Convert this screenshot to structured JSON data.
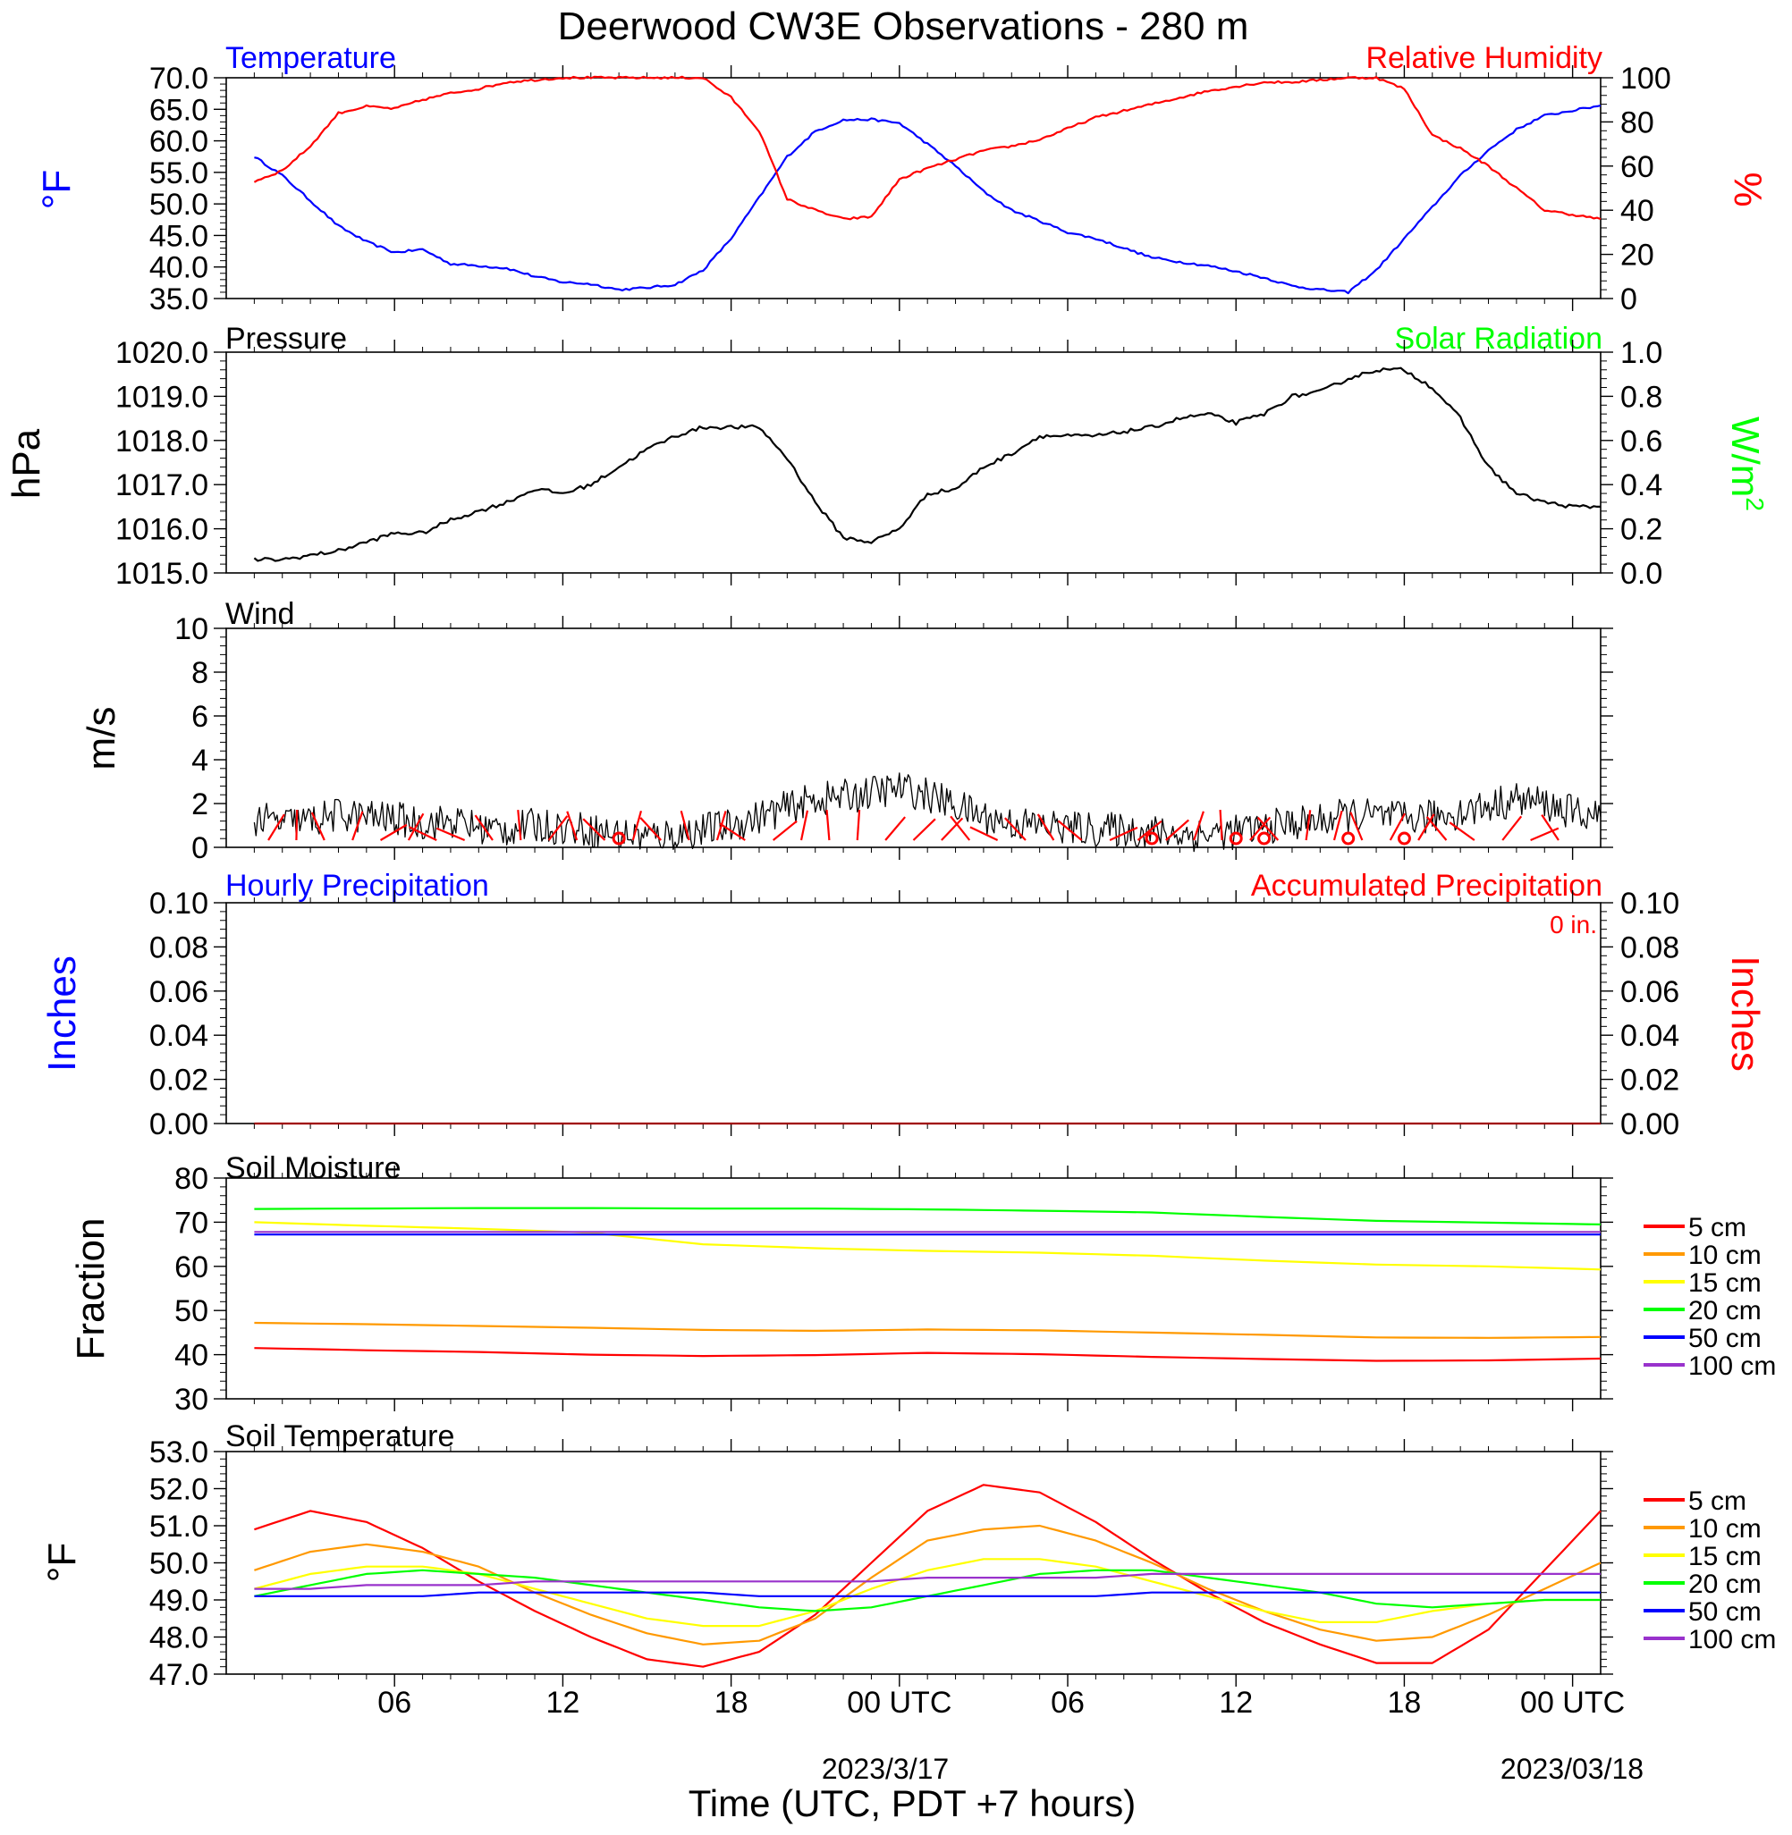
{
  "title": "Deerwood CW3E Observations - 280 m",
  "x_axis": {
    "label": "Time (UTC, PDT +7 hours)",
    "ticks": [
      "06",
      "12",
      "18",
      "00 UTC",
      "06",
      "12",
      "18",
      "00 UTC"
    ],
    "dates": [
      "2023/3/17",
      "2023/03/18"
    ]
  },
  "chart_data": [
    {
      "id": "temp_rh",
      "type": "line",
      "left_title": "Temperature",
      "right_title": "Relative Humidity",
      "ylabel_left": "°F",
      "ylabel_right": "%",
      "ylim_left": [
        35,
        70
      ],
      "ylim_right": [
        0,
        100
      ],
      "left_ticks": [
        "70.0",
        "65.0",
        "60.0",
        "55.0",
        "50.0",
        "45.0",
        "40.0",
        "35.0"
      ],
      "right_ticks": [
        "100",
        "80",
        "60",
        "40",
        "20",
        "0"
      ],
      "x_hours": [
        1,
        2,
        3,
        4,
        5,
        6,
        7,
        8,
        9,
        10,
        11,
        12,
        13,
        14,
        15,
        16,
        17,
        18,
        19,
        20,
        21,
        22,
        23,
        24,
        25,
        26,
        27,
        28,
        29,
        30,
        31,
        32,
        33,
        34,
        35,
        36,
        37,
        38,
        39,
        40,
        41,
        42,
        43,
        44,
        45,
        46,
        47,
        48,
        49
      ],
      "series": [
        {
          "name": "Temperature",
          "axis": "left",
          "color": "#0000ff",
          "values": [
            57.5,
            54.5,
            50.5,
            46.5,
            44.0,
            42.3,
            42.8,
            40.5,
            40.2,
            39.8,
            38.5,
            37.6,
            37.3,
            36.4,
            36.7,
            37.2,
            39.5,
            44.5,
            51.0,
            57.5,
            61.5,
            63.3,
            63.4,
            62.8,
            59.5,
            56.0,
            52.0,
            49.0,
            47.3,
            45.5,
            44.5,
            43.0,
            41.5,
            40.8,
            40.2,
            39.3,
            38.3,
            37.0,
            36.4,
            36.0,
            39.5,
            44.5,
            49.5,
            54.5,
            58.5,
            61.8,
            64.0,
            64.8,
            65.6
          ]
        },
        {
          "name": "Relative Humidity",
          "axis": "right",
          "color": "#ff0000",
          "values": [
            53,
            58,
            69,
            84,
            87,
            86,
            90,
            93,
            95,
            98,
            99,
            100,
            100,
            100,
            100,
            100,
            100,
            91,
            76,
            45,
            40,
            36,
            37,
            54,
            59,
            63,
            67,
            69,
            72,
            77,
            82,
            85,
            88,
            91,
            94,
            96,
            98,
            98,
            99,
            100,
            100,
            95,
            74,
            68,
            60,
            50,
            40,
            38,
            36
          ]
        }
      ]
    },
    {
      "id": "pressure",
      "type": "line",
      "left_title": "Pressure",
      "right_title": "Solar Radiation",
      "ylabel_left": "hPa",
      "ylabel_right": "W/m2",
      "ylim_left": [
        1015,
        1020
      ],
      "ylim_right": [
        0,
        1
      ],
      "left_ticks": [
        "1020.0",
        "1019.0",
        "1018.0",
        "1017.0",
        "1016.0",
        "1015.0"
      ],
      "right_ticks": [
        "1.0",
        "0.8",
        "0.6",
        "0.4",
        "0.2",
        "0.0"
      ],
      "x_hours": [
        1,
        2,
        3,
        4,
        5,
        6,
        7,
        8,
        9,
        10,
        11,
        12,
        13,
        14,
        15,
        16,
        17,
        18,
        19,
        20,
        21,
        22,
        23,
        24,
        25,
        26,
        27,
        28,
        29,
        30,
        31,
        32,
        33,
        34,
        35,
        36,
        37,
        38,
        39,
        40,
        41,
        42,
        43,
        44,
        45,
        46,
        47,
        48,
        49
      ],
      "series": [
        {
          "name": "Pressure",
          "axis": "left",
          "color": "#000000",
          "values": [
            1015.3,
            1015.3,
            1015.4,
            1015.5,
            1015.7,
            1015.9,
            1015.9,
            1016.2,
            1016.4,
            1016.6,
            1016.9,
            1016.8,
            1017.0,
            1017.4,
            1017.8,
            1018.1,
            1018.3,
            1018.3,
            1018.3,
            1017.6,
            1016.6,
            1015.8,
            1015.7,
            1016.0,
            1016.8,
            1016.9,
            1017.4,
            1017.7,
            1018.1,
            1018.1,
            1018.1,
            1018.2,
            1018.3,
            1018.5,
            1018.6,
            1018.4,
            1018.6,
            1019.0,
            1019.1,
            1019.4,
            1019.6,
            1019.6,
            1019.2,
            1018.5,
            1017.4,
            1016.8,
            1016.6,
            1016.5,
            1016.5
          ]
        }
      ]
    },
    {
      "id": "wind",
      "type": "line",
      "left_title": "Wind",
      "ylabel_left": "m/s",
      "ylim_left": [
        0,
        10
      ],
      "left_ticks": [
        "10",
        "8",
        "6",
        "4",
        "2",
        "0"
      ],
      "x_hours": [
        1,
        2,
        3,
        4,
        5,
        6,
        7,
        8,
        9,
        10,
        11,
        12,
        13,
        14,
        15,
        16,
        17,
        18,
        19,
        20,
        21,
        22,
        23,
        24,
        25,
        26,
        27,
        28,
        29,
        30,
        31,
        32,
        33,
        34,
        35,
        36,
        37,
        38,
        39,
        40,
        41,
        42,
        43,
        44,
        45,
        46,
        47,
        48,
        49
      ],
      "series": [
        {
          "name": "Wind speed",
          "axis": "left",
          "color": "#000000",
          "values": [
            1.3,
            1.1,
            1.2,
            1.5,
            1.4,
            1.3,
            1.1,
            1.2,
            0.9,
            0.8,
            1.0,
            0.9,
            0.8,
            0.6,
            0.5,
            0.6,
            0.8,
            1.0,
            1.4,
            1.8,
            2.2,
            2.3,
            2.5,
            2.7,
            2.4,
            1.9,
            1.4,
            1.1,
            1.0,
            0.9,
            0.8,
            0.8,
            0.7,
            0.6,
            0.6,
            0.7,
            0.9,
            1.1,
            1.2,
            1.5,
            1.4,
            1.3,
            1.4,
            1.6,
            1.9,
            2.2,
            2.0,
            1.6,
            1.4
          ]
        }
      ],
      "calm_markers_hours": [
        14,
        33,
        36,
        37,
        40,
        42
      ]
    },
    {
      "id": "precip",
      "type": "line",
      "left_title": "Hourly Precipitation",
      "right_title": "Accumulated Precipitation",
      "accumulated_label": "0 in.",
      "ylabel_left": "Inches",
      "ylabel_right": "Inches",
      "ylim_left": [
        0,
        0.1
      ],
      "ylim_right": [
        0,
        0.1
      ],
      "left_ticks": [
        "0.10",
        "0.08",
        "0.06",
        "0.04",
        "0.02",
        "0.00"
      ],
      "right_ticks": [
        "0.10",
        "0.08",
        "0.06",
        "0.04",
        "0.02",
        "0.00"
      ],
      "x_hours": [
        1,
        49
      ],
      "series": [
        {
          "name": "Accumulated Precipitation",
          "axis": "left",
          "color": "#a00000",
          "values": [
            0,
            0
          ]
        }
      ]
    },
    {
      "id": "soil_moisture",
      "type": "line",
      "left_title": "Soil Moisture",
      "ylabel_left": "Fraction",
      "ylim_left": [
        30,
        80
      ],
      "left_ticks": [
        "80",
        "70",
        "60",
        "50",
        "40",
        "30"
      ],
      "x_hours": [
        1,
        5,
        9,
        13,
        17,
        21,
        25,
        29,
        33,
        37,
        41,
        45,
        49
      ],
      "series": [
        {
          "name": "5 cm",
          "color": "#ff0000",
          "values": [
            41.5,
            41.0,
            40.6,
            40.0,
            39.7,
            39.9,
            40.4,
            40.1,
            39.5,
            39.0,
            38.6,
            38.7,
            39.1
          ]
        },
        {
          "name": "10 cm",
          "color": "#ff9900",
          "values": [
            47.2,
            46.9,
            46.5,
            46.1,
            45.6,
            45.4,
            45.7,
            45.5,
            45.0,
            44.5,
            43.9,
            43.8,
            44.0
          ]
        },
        {
          "name": "15 cm",
          "color": "#ffff00",
          "values": [
            70.0,
            69.2,
            68.5,
            67.6,
            65.0,
            64.1,
            63.5,
            63.1,
            62.4,
            61.3,
            60.4,
            60.0,
            59.3
          ]
        },
        {
          "name": "20 cm",
          "color": "#00ff00",
          "values": [
            73.0,
            73.1,
            73.2,
            73.2,
            73.1,
            73.1,
            72.9,
            72.6,
            72.2,
            71.2,
            70.3,
            69.9,
            69.5
          ]
        },
        {
          "name": "50 cm",
          "color": "#0000ff",
          "values": [
            67.2,
            67.2,
            67.2,
            67.2,
            67.2,
            67.2,
            67.2,
            67.2,
            67.2,
            67.2,
            67.2,
            67.2,
            67.2
          ]
        },
        {
          "name": "100 cm",
          "color": "#9932cc",
          "values": [
            67.8,
            67.8,
            67.8,
            67.8,
            67.8,
            67.8,
            67.8,
            67.8,
            67.8,
            67.8,
            67.8,
            67.8,
            67.8
          ]
        }
      ]
    },
    {
      "id": "soil_temperature",
      "type": "line",
      "left_title": "Soil Temperature",
      "ylabel_left": "°F",
      "ylim_left": [
        47,
        53
      ],
      "left_ticks": [
        "53.0",
        "52.0",
        "51.0",
        "50.0",
        "49.0",
        "48.0",
        "47.0"
      ],
      "x_hours": [
        1,
        3,
        5,
        7,
        9,
        11,
        13,
        15,
        17,
        19,
        21,
        23,
        25,
        27,
        29,
        31,
        33,
        35,
        37,
        39,
        41,
        43,
        45,
        47,
        49
      ],
      "series": [
        {
          "name": "5 cm",
          "color": "#ff0000",
          "values": [
            50.9,
            51.4,
            51.1,
            50.4,
            49.5,
            48.7,
            48.0,
            47.4,
            47.2,
            47.6,
            48.6,
            50.0,
            51.4,
            52.1,
            51.9,
            51.1,
            50.1,
            49.2,
            48.4,
            47.8,
            47.3,
            47.3,
            48.2,
            49.8,
            51.4
          ]
        },
        {
          "name": "10 cm",
          "color": "#ff9900",
          "values": [
            49.8,
            50.3,
            50.5,
            50.3,
            49.9,
            49.2,
            48.6,
            48.1,
            47.8,
            47.9,
            48.5,
            49.6,
            50.6,
            50.9,
            51.0,
            50.6,
            50.0,
            49.3,
            48.7,
            48.2,
            47.9,
            48.0,
            48.6,
            49.3,
            50.0
          ]
        },
        {
          "name": "15 cm",
          "color": "#ffff00",
          "values": [
            49.3,
            49.7,
            49.9,
            49.9,
            49.7,
            49.3,
            48.9,
            48.5,
            48.3,
            48.3,
            48.7,
            49.3,
            49.8,
            50.1,
            50.1,
            49.9,
            49.5,
            49.1,
            48.7,
            48.4,
            48.4,
            48.7,
            48.9,
            49.0,
            49.0
          ]
        },
        {
          "name": "20 cm",
          "color": "#00ff00",
          "values": [
            49.1,
            49.4,
            49.7,
            49.8,
            49.7,
            49.6,
            49.4,
            49.2,
            49.0,
            48.8,
            48.7,
            48.8,
            49.1,
            49.4,
            49.7,
            49.8,
            49.8,
            49.6,
            49.4,
            49.2,
            48.9,
            48.8,
            48.9,
            49.0,
            49.0
          ]
        },
        {
          "name": "50 cm",
          "color": "#0000ff",
          "values": [
            49.1,
            49.1,
            49.1,
            49.1,
            49.2,
            49.2,
            49.2,
            49.2,
            49.2,
            49.1,
            49.1,
            49.1,
            49.1,
            49.1,
            49.1,
            49.1,
            49.2,
            49.2,
            49.2,
            49.2,
            49.2,
            49.2,
            49.2,
            49.2,
            49.2
          ]
        },
        {
          "name": "100 cm",
          "color": "#9932cc",
          "values": [
            49.3,
            49.3,
            49.4,
            49.4,
            49.4,
            49.5,
            49.5,
            49.5,
            49.5,
            49.5,
            49.5,
            49.5,
            49.6,
            49.6,
            49.6,
            49.6,
            49.7,
            49.7,
            49.7,
            49.7,
            49.7,
            49.7,
            49.7,
            49.7,
            49.7
          ]
        }
      ]
    }
  ]
}
